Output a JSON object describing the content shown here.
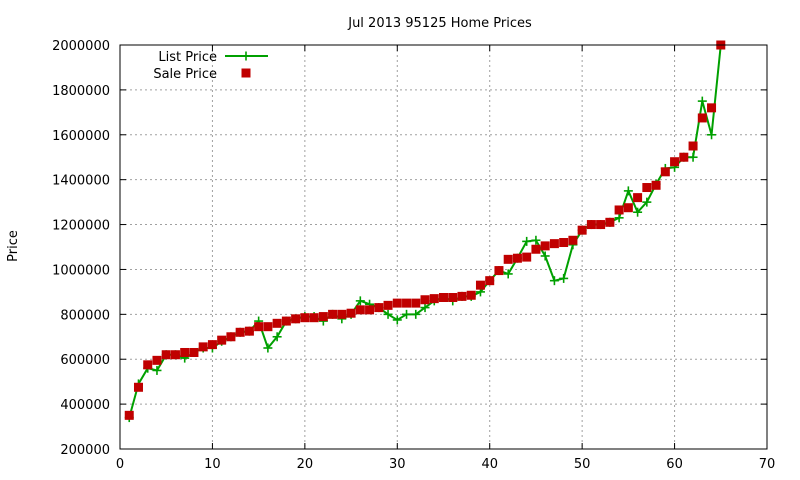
{
  "chart_data": {
    "type": "line",
    "title": "Jul 2013 95125 Home Prices",
    "ylabel": "Price",
    "xlabel": "",
    "xlim": [
      0,
      70
    ],
    "ylim": [
      200000,
      2000000
    ],
    "x_ticks": [
      "0",
      "10",
      "20",
      "30",
      "40",
      "50",
      "60",
      "70"
    ],
    "y_ticks": [
      "200000",
      "400000",
      "600000",
      "800000",
      "1000000",
      "1200000",
      "1400000",
      "1600000",
      "1800000",
      "2000000"
    ],
    "grid": true,
    "legend_position": "top-left",
    "series": [
      {
        "name": "List Price",
        "style": "line-plus",
        "color": "#00a000",
        "points": [
          [
            1,
            340000
          ],
          [
            2,
            490000
          ],
          [
            3,
            560000
          ],
          [
            4,
            550000
          ],
          [
            5,
            620000
          ],
          [
            6,
            620000
          ],
          [
            7,
            605000
          ],
          [
            8,
            630000
          ],
          [
            9,
            650000
          ],
          [
            10,
            650000
          ],
          [
            11,
            680000
          ],
          [
            12,
            700000
          ],
          [
            13,
            720000
          ],
          [
            14,
            725000
          ],
          [
            15,
            770000
          ],
          [
            16,
            650000
          ],
          [
            17,
            700000
          ],
          [
            18,
            770000
          ],
          [
            19,
            780000
          ],
          [
            20,
            790000
          ],
          [
            21,
            790000
          ],
          [
            22,
            770000
          ],
          [
            23,
            800000
          ],
          [
            24,
            780000
          ],
          [
            25,
            800000
          ],
          [
            26,
            860000
          ],
          [
            27,
            845000
          ],
          [
            28,
            830000
          ],
          [
            29,
            800000
          ],
          [
            30,
            775000
          ],
          [
            31,
            800000
          ],
          [
            32,
            800000
          ],
          [
            33,
            830000
          ],
          [
            34,
            860000
          ],
          [
            35,
            875000
          ],
          [
            36,
            860000
          ],
          [
            37,
            880000
          ],
          [
            38,
            880000
          ],
          [
            39,
            900000
          ],
          [
            40,
            950000
          ],
          [
            41,
            995000
          ],
          [
            42,
            980000
          ],
          [
            43,
            1050000
          ],
          [
            44,
            1125000
          ],
          [
            45,
            1130000
          ],
          [
            46,
            1060000
          ],
          [
            47,
            950000
          ],
          [
            48,
            960000
          ],
          [
            49,
            1110000
          ],
          [
            50,
            1175000
          ],
          [
            51,
            1200000
          ],
          [
            52,
            1200000
          ],
          [
            53,
            1210000
          ],
          [
            54,
            1230000
          ],
          [
            55,
            1350000
          ],
          [
            56,
            1255000
          ],
          [
            57,
            1300000
          ],
          [
            58,
            1380000
          ],
          [
            59,
            1450000
          ],
          [
            60,
            1455000
          ],
          [
            61,
            1500000
          ],
          [
            62,
            1500000
          ],
          [
            63,
            1750000
          ],
          [
            64,
            1600000
          ],
          [
            65,
            2000000
          ]
        ]
      },
      {
        "name": "Sale Price",
        "style": "points-square",
        "color": "#c00000",
        "points": [
          [
            1,
            350000
          ],
          [
            2,
            475000
          ],
          [
            3,
            575000
          ],
          [
            4,
            595000
          ],
          [
            5,
            620000
          ],
          [
            6,
            620000
          ],
          [
            7,
            630000
          ],
          [
            8,
            630000
          ],
          [
            9,
            655000
          ],
          [
            10,
            665000
          ],
          [
            11,
            685000
          ],
          [
            12,
            700000
          ],
          [
            13,
            720000
          ],
          [
            14,
            725000
          ],
          [
            15,
            745000
          ],
          [
            16,
            745000
          ],
          [
            17,
            760000
          ],
          [
            18,
            770000
          ],
          [
            19,
            780000
          ],
          [
            20,
            785000
          ],
          [
            21,
            785000
          ],
          [
            22,
            790000
          ],
          [
            23,
            800000
          ],
          [
            24,
            800000
          ],
          [
            25,
            805000
          ],
          [
            26,
            820000
          ],
          [
            27,
            820000
          ],
          [
            28,
            830000
          ],
          [
            29,
            840000
          ],
          [
            30,
            850000
          ],
          [
            31,
            850000
          ],
          [
            32,
            850000
          ],
          [
            33,
            865000
          ],
          [
            34,
            870000
          ],
          [
            35,
            875000
          ],
          [
            36,
            875000
          ],
          [
            37,
            880000
          ],
          [
            38,
            885000
          ],
          [
            39,
            930000
          ],
          [
            40,
            950000
          ],
          [
            41,
            995000
          ],
          [
            42,
            1045000
          ],
          [
            43,
            1050000
          ],
          [
            44,
            1055000
          ],
          [
            45,
            1090000
          ],
          [
            46,
            1105000
          ],
          [
            47,
            1115000
          ],
          [
            48,
            1120000
          ],
          [
            49,
            1130000
          ],
          [
            50,
            1175000
          ],
          [
            51,
            1200000
          ],
          [
            52,
            1200000
          ],
          [
            53,
            1210000
          ],
          [
            54,
            1265000
          ],
          [
            55,
            1275000
          ],
          [
            56,
            1320000
          ],
          [
            57,
            1365000
          ],
          [
            58,
            1375000
          ],
          [
            59,
            1435000
          ],
          [
            60,
            1480000
          ],
          [
            61,
            1500000
          ],
          [
            62,
            1550000
          ],
          [
            63,
            1675000
          ],
          [
            64,
            1720000
          ],
          [
            65,
            2000000
          ]
        ]
      }
    ]
  }
}
